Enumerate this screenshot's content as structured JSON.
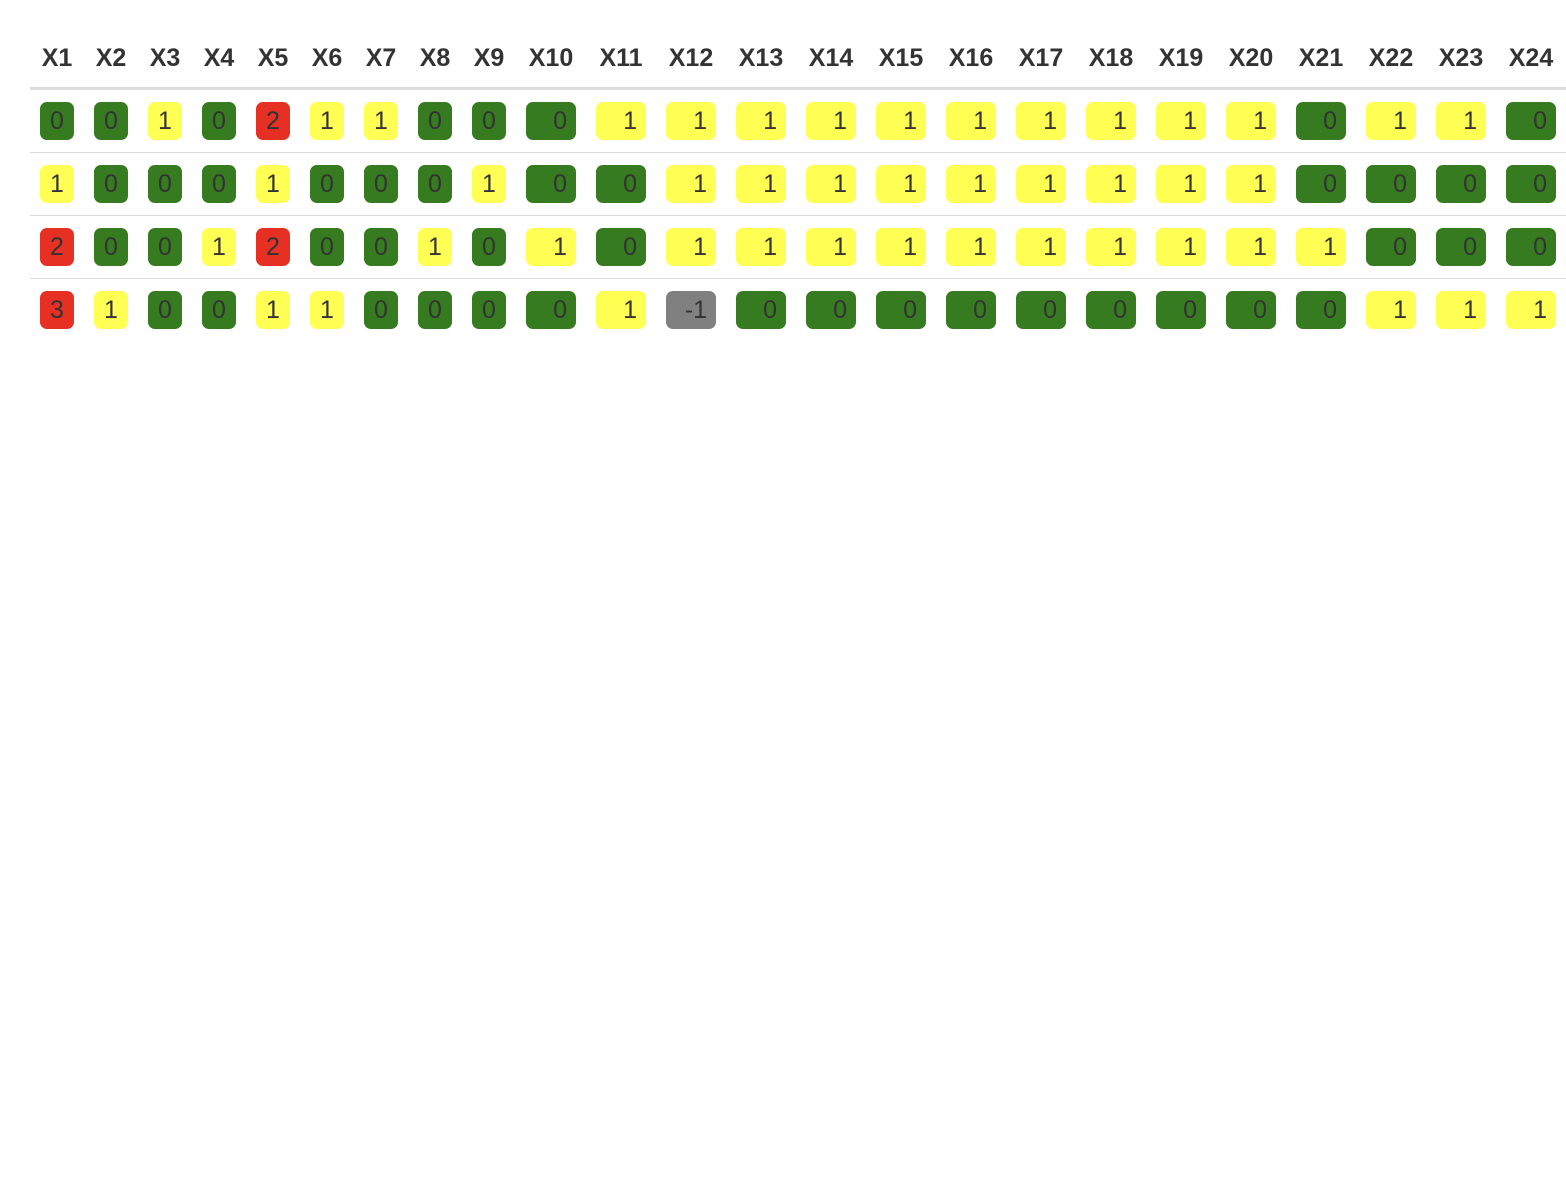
{
  "table": {
    "headers": [
      "X1",
      "X2",
      "X3",
      "X4",
      "X5",
      "X6",
      "X7",
      "X8",
      "X9",
      "X10",
      "X11",
      "X12",
      "X13",
      "X14",
      "X15",
      "X16",
      "X17",
      "X18",
      "X19",
      "X20",
      "X21",
      "X22",
      "X23",
      "X24"
    ],
    "rows": [
      [
        "0",
        "0",
        "1",
        "0",
        "2",
        "1",
        "1",
        "0",
        "0",
        "0",
        "1",
        "1",
        "1",
        "1",
        "1",
        "1",
        "1",
        "1",
        "1",
        "1",
        "0",
        "1",
        "1",
        "0"
      ],
      [
        "1",
        "0",
        "0",
        "0",
        "1",
        "0",
        "0",
        "0",
        "1",
        "0",
        "0",
        "1",
        "1",
        "1",
        "1",
        "1",
        "1",
        "1",
        "1",
        "1",
        "0",
        "0",
        "0",
        "0"
      ],
      [
        "2",
        "0",
        "0",
        "1",
        "2",
        "0",
        "0",
        "1",
        "0",
        "1",
        "0",
        "1",
        "1",
        "1",
        "1",
        "1",
        "1",
        "1",
        "1",
        "1",
        "1",
        "0",
        "0",
        "0"
      ],
      [
        "3",
        "1",
        "0",
        "0",
        "1",
        "1",
        "0",
        "0",
        "0",
        "0",
        "1",
        "-1",
        "0",
        "0",
        "0",
        "0",
        "0",
        "0",
        "0",
        "0",
        "0",
        "1",
        "1",
        "1"
      ]
    ]
  },
  "value_colors": {
    "-1": "#808080",
    "0": "#367b1f",
    "1": "#ffff54",
    "2": "#e53023",
    "3": "#e53023"
  }
}
